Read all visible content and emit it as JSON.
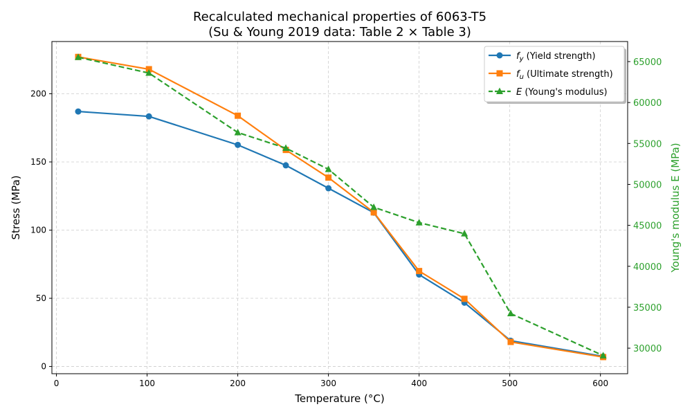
{
  "chart_data": {
    "type": "line",
    "title": "Recalculated mechanical properties of 6063-T5",
    "subtitle": "(Su & Young 2019 data: Table 2 × Table 3)",
    "xlabel": "Temperature (°C)",
    "ylabel": "Stress (MPa)",
    "y2label": "Young's modulus E (MPa)",
    "xlim": [
      -5,
      630
    ],
    "ylim": [
      -5.3,
      238.3
    ],
    "y2lim": [
      26880,
      67450
    ],
    "xticks": [
      0,
      100,
      200,
      300,
      400,
      500,
      600
    ],
    "yticks": [
      0,
      50,
      100,
      150,
      200
    ],
    "y2ticks": [
      30000,
      35000,
      40000,
      45000,
      50000,
      55000,
      60000,
      65000
    ],
    "grid": true,
    "legend_position": "top-right",
    "x": [
      24,
      102,
      200,
      253,
      300,
      350,
      400,
      450,
      501,
      603
    ],
    "series": [
      {
        "name": "f_y (Yield strength)",
        "symbol": "f",
        "sub": "y",
        "rest": " (Yield strength)",
        "axis": "left",
        "color": "#1f77b4",
        "marker": "circle",
        "dashed": false,
        "values": [
          187,
          183.4,
          162.5,
          147.5,
          130.7,
          112.8,
          67.4,
          46.8,
          18.9,
          7.4
        ]
      },
      {
        "name": "f_u (Ultimate strength)",
        "symbol": "f",
        "sub": "u",
        "rest": " (Ultimate strength)",
        "axis": "left",
        "color": "#ff7f0e",
        "marker": "square",
        "dashed": false,
        "values": [
          227,
          218,
          183.9,
          158.8,
          138.5,
          113,
          70,
          49.6,
          18,
          6.9
        ]
      },
      {
        "name": "E (Young's modulus)",
        "symbol": "E",
        "sub": "",
        "rest": " (Young's modulus)",
        "axis": "right",
        "color": "#2ca02c",
        "marker": "triangle",
        "dashed": true,
        "values": [
          65530,
          63600,
          56340,
          54430,
          51850,
          47210,
          45330,
          43980,
          34230,
          29090
        ]
      }
    ]
  }
}
